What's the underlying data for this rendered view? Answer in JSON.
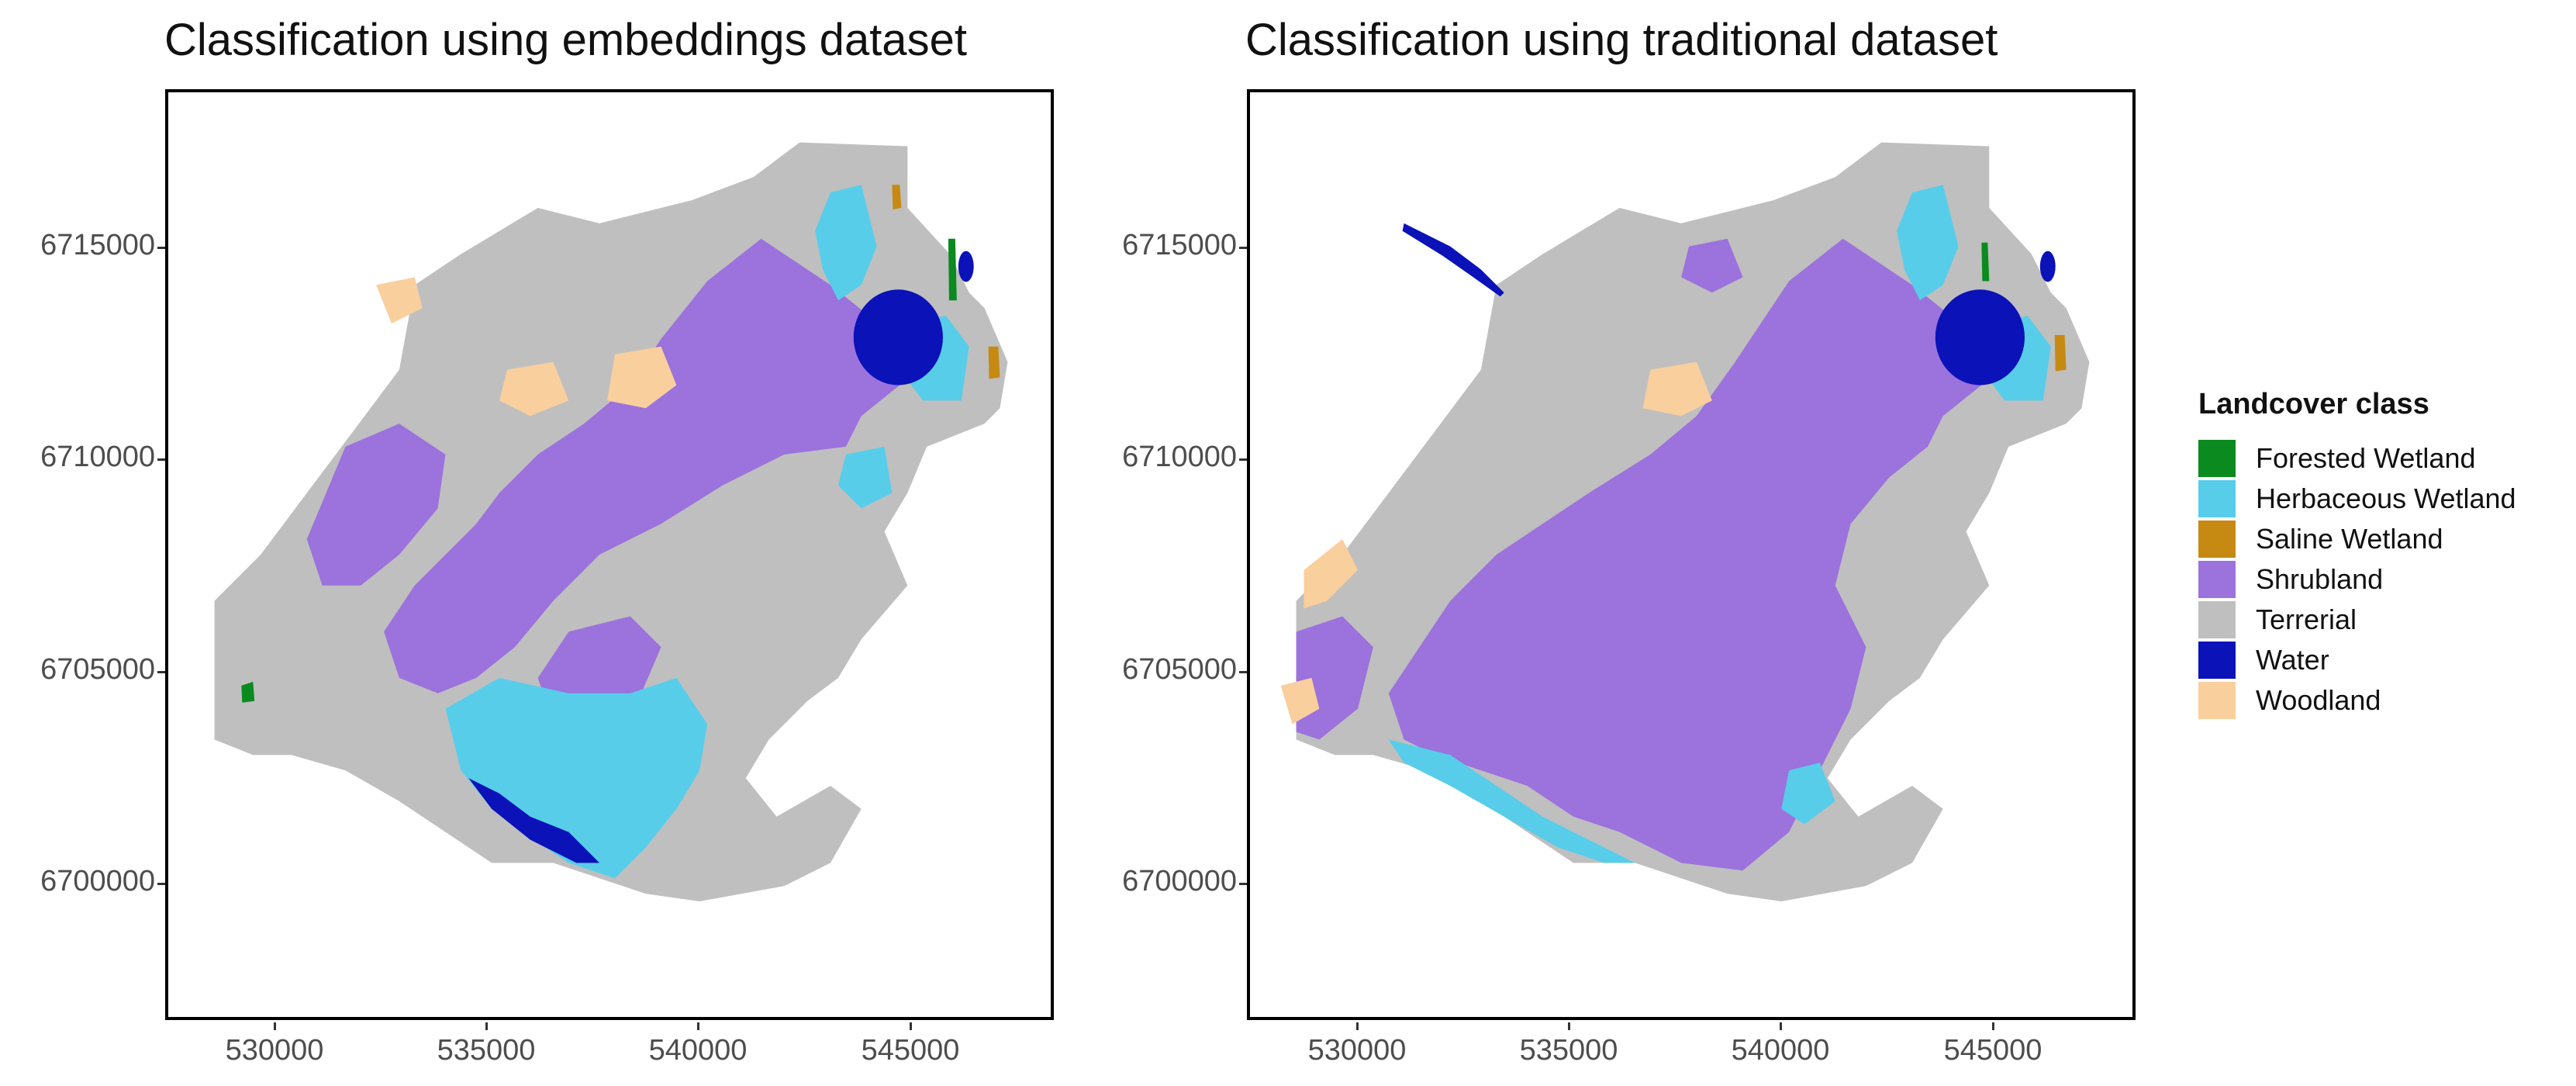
{
  "panels": [
    {
      "title": "Classification using embeddings dataset"
    },
    {
      "title": "Classification using traditional dataset"
    }
  ],
  "axes": {
    "y_ticks": [
      "6715000",
      "6710000",
      "6705000",
      "6700000"
    ],
    "x_ticks": [
      "530000",
      "535000",
      "540000",
      "545000"
    ]
  },
  "legend": {
    "title": "Landcover class",
    "items": [
      {
        "label": "Forested Wetland",
        "color": "#0a8a1f"
      },
      {
        "label": "Herbaceous Wetland",
        "color": "#57cdea"
      },
      {
        "label": "Saline Wetland",
        "color": "#c68a12"
      },
      {
        "label": "Shrubland",
        "color": "#9c72dd"
      },
      {
        "label": "Terrerial",
        "color": "#bfbfbf"
      },
      {
        "label": "Water",
        "color": "#0a12b8"
      },
      {
        "label": "Woodland",
        "color": "#f9cf9d"
      }
    ]
  }
}
